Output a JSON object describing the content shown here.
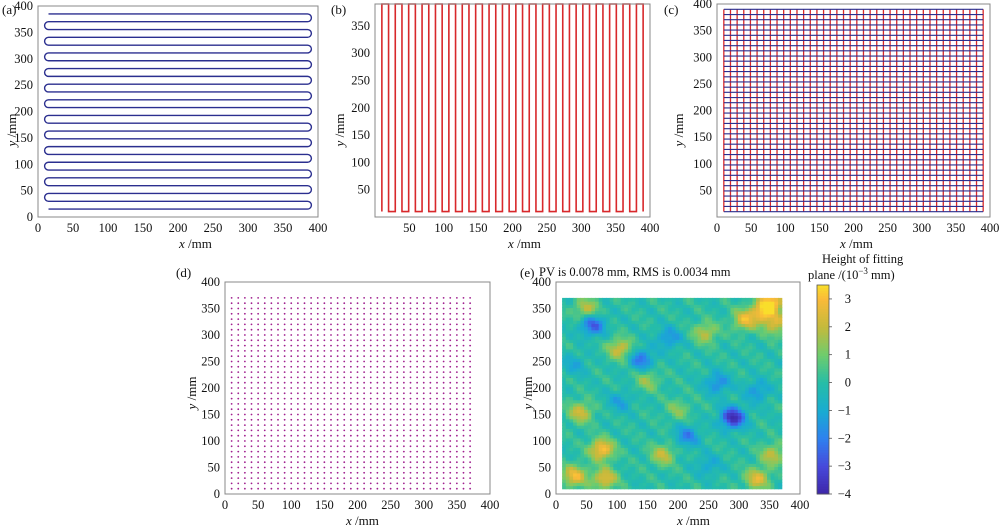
{
  "figure": {
    "panels": [
      {
        "label": "(a)"
      },
      {
        "label": "(b)"
      },
      {
        "label": "(c)"
      },
      {
        "label": "(d)"
      },
      {
        "label": "(e)"
      }
    ]
  },
  "colors": {
    "blue_path": "#2b2f8f",
    "red_path": "#d8282b",
    "dots": "#a0208f",
    "axis": "#888888"
  },
  "chart_data": [
    {
      "id": "a",
      "type": "line",
      "title": "(a)",
      "description_of_series": "horizontal serpentine scan path",
      "xlabel_var": "x",
      "xlabel_unit": " /mm",
      "ylabel_var": "y",
      "ylabel_unit": " /mm",
      "xlim": [
        0,
        400
      ],
      "ylim": [
        0,
        400
      ],
      "xticks": [
        0,
        50,
        100,
        150,
        200,
        250,
        300,
        350,
        400
      ],
      "yticks": [
        0,
        50,
        100,
        150,
        200,
        250,
        300,
        350,
        400
      ],
      "x_range": [
        15,
        385
      ],
      "y_start": 15,
      "y_end": 385,
      "n_passes": 26,
      "color": "#2b2f8f"
    },
    {
      "id": "b",
      "type": "line",
      "title": "(b)",
      "description_of_series": "vertical serpentine scan path",
      "xlabel_var": "x",
      "xlabel_unit": " /mm",
      "ylabel_var": "y",
      "ylabel_unit": " /mm",
      "xlim": [
        0,
        400
      ],
      "ylim": [
        0,
        390
      ],
      "xticks": [
        50,
        100,
        150,
        200,
        250,
        300,
        350,
        400
      ],
      "yticks": [
        50,
        100,
        150,
        200,
        250,
        300,
        350
      ],
      "y_range": [
        10,
        390
      ],
      "x_start": 10,
      "x_end": 390,
      "n_passes": 40,
      "color": "#d8282b"
    },
    {
      "id": "c",
      "type": "line",
      "title": "(c)",
      "description_of_series": "crossed grid scan path (horizontal + vertical)",
      "xlabel_var": "x",
      "xlabel_unit": " /mm",
      "ylabel_var": "y",
      "ylabel_unit": " /mm",
      "xlim": [
        0,
        400
      ],
      "ylim": [
        0,
        400
      ],
      "xticks": [
        0,
        50,
        100,
        150,
        200,
        250,
        300,
        350,
        400
      ],
      "yticks": [
        50,
        100,
        150,
        200,
        250,
        300,
        350,
        400
      ],
      "x_range": [
        10,
        390
      ],
      "y_range": [
        10,
        390
      ],
      "n_horizontal": 40,
      "n_vertical": 40,
      "color_horizontal": "#2b2f8f",
      "color_vertical": "#d8282b"
    },
    {
      "id": "d",
      "type": "scatter",
      "title": "(d)",
      "description_of_series": "measurement point grid",
      "xlabel_var": "x",
      "xlabel_unit": " /mm",
      "ylabel_var": "y",
      "ylabel_unit": " /mm",
      "xlim": [
        0,
        400
      ],
      "ylim": [
        0,
        400
      ],
      "xticks": [
        0,
        50,
        100,
        150,
        200,
        250,
        300,
        350,
        400
      ],
      "yticks": [
        0,
        50,
        100,
        150,
        200,
        250,
        300,
        350,
        400
      ],
      "x_start": 10,
      "x_end": 370,
      "x_step": 10,
      "y_start": 10,
      "y_end": 370,
      "y_step": 10,
      "color": "#a0208f"
    },
    {
      "id": "e",
      "type": "heatmap",
      "title": "(e)",
      "annotation": "PV is 0.0078 mm, RMS is 0.0034 mm",
      "xlabel_var": "x",
      "xlabel_unit": " /mm",
      "ylabel_var": "y",
      "ylabel_unit": " /mm",
      "xlim": [
        0,
        400
      ],
      "ylim": [
        0,
        400
      ],
      "xticks": [
        0,
        50,
        100,
        150,
        200,
        250,
        300,
        350,
        400
      ],
      "yticks": [
        0,
        50,
        100,
        150,
        200,
        250,
        300,
        350,
        400
      ],
      "data_extent": [
        10,
        370
      ],
      "colorbar": {
        "title_line1": "Height of fitting",
        "title_line2": "plane /(10",
        "title_sup": "−3",
        "title_line2_end": " mm)",
        "range": [
          -4,
          3.5
        ],
        "ticks": [
          3,
          2,
          1,
          0,
          -1,
          -2,
          -3,
          -4
        ],
        "tick_labels": [
          "3",
          "2",
          "1",
          "0",
          "−1",
          "−2",
          "−3",
          "−4"
        ]
      },
      "hotspots": [
        {
          "x": 30,
          "y": 35,
          "v": 2.8
        },
        {
          "x": 80,
          "y": 30,
          "v": 2.6
        },
        {
          "x": 75,
          "y": 85,
          "v": 3.2
        },
        {
          "x": 40,
          "y": 155,
          "v": 2.2
        },
        {
          "x": 175,
          "y": 75,
          "v": 2.0
        },
        {
          "x": 105,
          "y": 275,
          "v": 2.3
        },
        {
          "x": 245,
          "y": 305,
          "v": 1.9
        },
        {
          "x": 310,
          "y": 330,
          "v": 2.6
        },
        {
          "x": 340,
          "y": 345,
          "v": 2.9
        },
        {
          "x": 355,
          "y": 365,
          "v": 3.0
        },
        {
          "x": 360,
          "y": 320,
          "v": 2.2
        },
        {
          "x": 330,
          "y": 30,
          "v": 2.5
        },
        {
          "x": 355,
          "y": 75,
          "v": 2.0
        },
        {
          "x": 50,
          "y": 350,
          "v": 2.0
        },
        {
          "x": 150,
          "y": 215,
          "v": 1.4
        },
        {
          "x": 200,
          "y": 160,
          "v": 1.2
        }
      ],
      "coldspots": [
        {
          "x": 290,
          "y": 145,
          "v": -3.9
        },
        {
          "x": 60,
          "y": 320,
          "v": -2.7
        },
        {
          "x": 140,
          "y": 255,
          "v": -2.2
        },
        {
          "x": 215,
          "y": 110,
          "v": -1.9
        },
        {
          "x": 265,
          "y": 210,
          "v": -1.8
        },
        {
          "x": 185,
          "y": 295,
          "v": -1.6
        },
        {
          "x": 330,
          "y": 195,
          "v": -1.5
        },
        {
          "x": 105,
          "y": 175,
          "v": -1.2
        },
        {
          "x": 30,
          "y": 245,
          "v": -1.0
        },
        {
          "x": 250,
          "y": 55,
          "v": -1.1
        }
      ]
    }
  ]
}
